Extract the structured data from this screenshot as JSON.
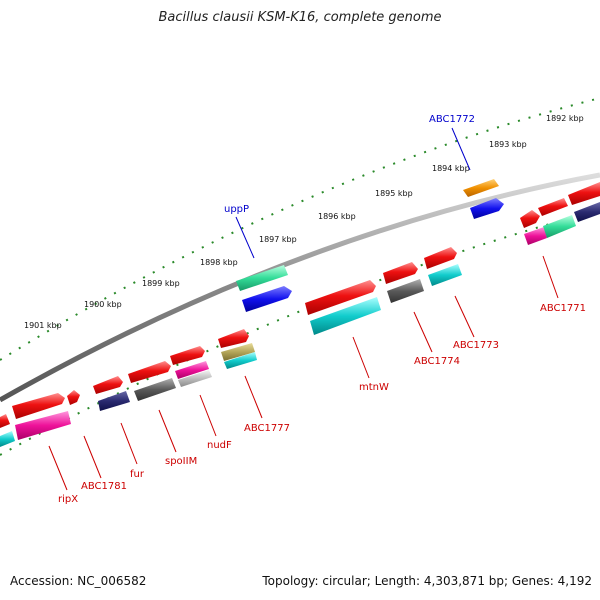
{
  "title": "Bacillus clausii KSM-K16, complete genome",
  "footer": {
    "accession": "Accession: NC_006582",
    "topology": "Topology: circular; Length: 4,303,871 bp; Genes: 4,192"
  },
  "kbp_ticks": [
    "1901 kbp",
    "1900 kbp",
    "1899 kbp",
    "1898 kbp",
    "1897 kbp",
    "1896 kbp",
    "1895 kbp",
    "1894 kbp",
    "1893 kbp",
    "1892 kbp"
  ],
  "genes_outer": [
    {
      "name": "uppP",
      "color": "#0000cc"
    },
    {
      "name": "ABC1772",
      "color": "#0000cc"
    }
  ],
  "genes_inner": [
    {
      "name": "ripX",
      "color": "#cc0000"
    },
    {
      "name": "ABC1781",
      "color": "#cc0000"
    },
    {
      "name": "fur",
      "color": "#cc0000"
    },
    {
      "name": "spoIIM",
      "color": "#cc0000"
    },
    {
      "name": "nudF",
      "color": "#cc0000"
    },
    {
      "name": "ABC1777",
      "color": "#cc0000"
    },
    {
      "name": "mtnW",
      "color": "#cc0000"
    },
    {
      "name": "ABC1774",
      "color": "#cc0000"
    },
    {
      "name": "ABC1773",
      "color": "#cc0000"
    },
    {
      "name": "ABC1771",
      "color": "#cc0000"
    }
  ]
}
